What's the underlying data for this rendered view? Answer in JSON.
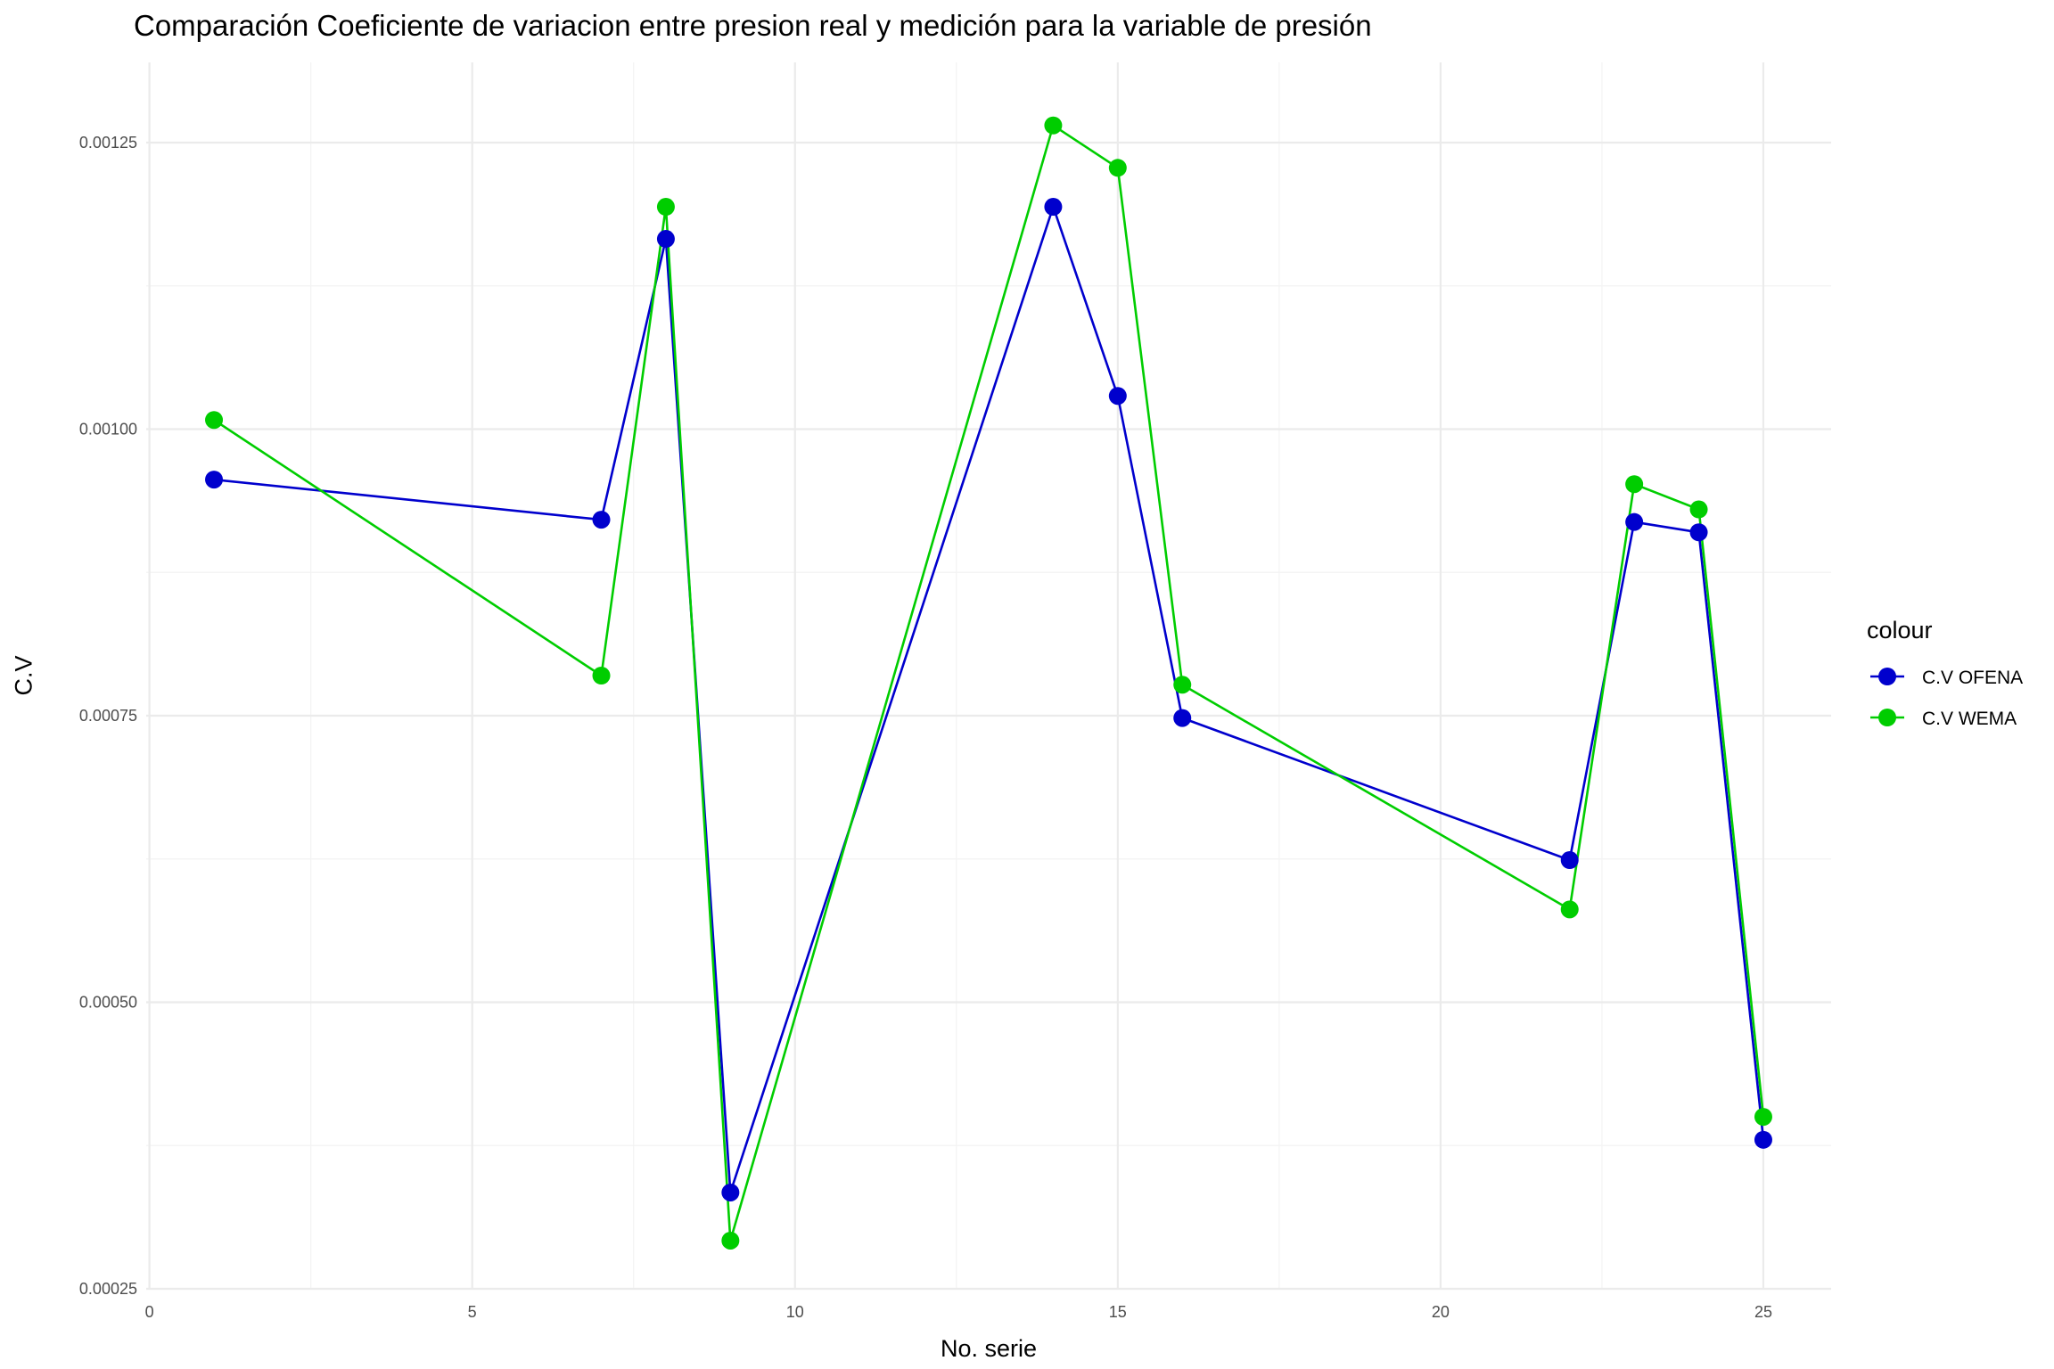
{
  "chart_data": {
    "type": "line",
    "title": "Comparación Coeficiente de variacion entre  presion real y medición para la variable de presión",
    "xlabel": "No. serie",
    "ylabel": "C.V",
    "xlim": [
      -0.05,
      26.05
    ],
    "ylim": [
      0.00025,
      0.00132
    ],
    "x_ticks": [
      0,
      5,
      10,
      15,
      20,
      25
    ],
    "x_tick_labels": [
      "0",
      "5",
      "10",
      "15",
      "20",
      "25"
    ],
    "y_ticks": [
      0.00025,
      0.0005,
      0.00075,
      0.001,
      0.00125
    ],
    "y_tick_labels": [
      "0.00025",
      "0.00050",
      "0.00075",
      "0.00100",
      "0.00125"
    ],
    "grid": true,
    "legend_title": "colour",
    "legend_position": "right",
    "x": [
      1,
      7,
      8,
      9,
      14,
      15,
      16,
      22,
      23,
      24,
      25
    ],
    "series": [
      {
        "name": "C.V OFENA",
        "color": "#0000cd",
        "values": [
          0.000956,
          0.000921,
          0.001166,
          0.000334,
          0.001194,
          0.001029,
          0.000748,
          0.000624,
          0.000919,
          0.00091,
          0.00038
        ]
      },
      {
        "name": "C.V WEMA",
        "color": "#00cd00",
        "values": [
          0.001008,
          0.000785,
          0.001194,
          0.000292,
          0.001265,
          0.001228,
          0.000777,
          0.000581,
          0.000952,
          0.00093,
          0.0004
        ]
      }
    ]
  }
}
